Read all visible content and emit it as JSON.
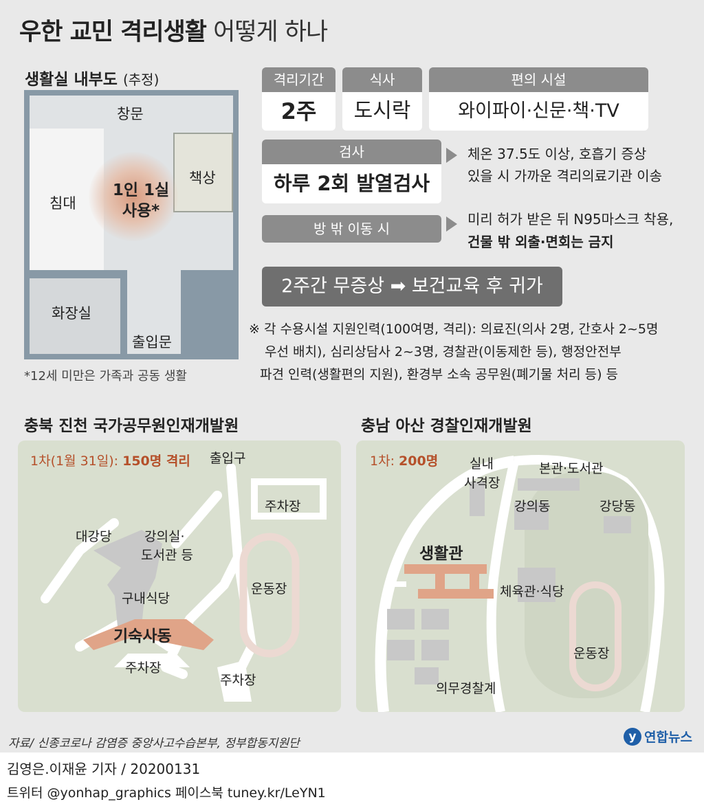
{
  "title": {
    "bold": "우한 교민 격리생활",
    "light": "어떻게 하나"
  },
  "room": {
    "heading": "생활실 내부도",
    "heading_note": "(추정)",
    "window": "창문",
    "desk": "책상",
    "bed": "침대",
    "center_line1": "1인 1실",
    "center_line2": "사용*",
    "bathroom": "화장실",
    "door": "출입문",
    "footnote": "*12세 미만은 가족과 공동 생활"
  },
  "info": {
    "period_label": "격리기간",
    "period_value": "2주",
    "meal_label": "식사",
    "meal_value": "도시락",
    "amenity_label": "편의 시설",
    "amenity_value": "와이파이·신문·책·TV",
    "test_label": "검사",
    "test_value": "하루 2회 발열검사",
    "test_note1": "체온 37.5도 이상, 호흡기 증상",
    "test_note2": "있을 시 가까운 격리의료기관 이송",
    "move_label": "방 밖 이동 시",
    "move_note1": "미리 허가 받은 뒤 N95마스크 착용,",
    "move_note2": "건물 밖 외출·면회는 금지",
    "result": "2주간 무증상 ➡ 보건교육 후 귀가",
    "staff_line1": "※ 각 수용시설 지원인력(100여명, 격리):  의료진(의사 2명, 간호사 2~5명",
    "staff_line2": "우선 배치), 심리상담사 2~3명, 경찰관(이동제한 등), 행정안전부",
    "staff_line3": "파견 인력(생활편의 지원), 환경부 소속 공무원(폐기물 처리 등) 등"
  },
  "jincheon": {
    "heading": "충북 진천 국가공무원인재개발원",
    "phase": "1차(1월 31일):",
    "count": "150명 격리",
    "entrance": "출입구",
    "parking_top": "주차장",
    "auditorium": "대강당",
    "lecture1": "강의실·",
    "lecture2": "도서관 등",
    "track": "운동장",
    "cafeteria": "구내식당",
    "dorm": "기숙사동",
    "parking_bottom": "주차장",
    "parking_right": "주차장"
  },
  "asan": {
    "heading": "충남 아산 경찰인재개발원",
    "phase": "1차:",
    "count": "200명",
    "range1": "실내",
    "range2": "사격장",
    "main": "본관·도서관",
    "lecture": "강의동",
    "hall": "강당동",
    "living": "생활관",
    "gym": "체육관·식당",
    "track": "운동장",
    "conscript": "의무경찰계"
  },
  "footer": {
    "source": "자료/ 신종코로나 감염증 중앙사고수습본부, 정부합동지원단",
    "logo": "연합뉴스",
    "byline": "김영은.이재윤 기자 / 20200131",
    "social": "트위터 @yonhap_graphics  페이스북 tuney.kr/LeYN1"
  },
  "colors": {
    "background": "#e9e9e9",
    "label_gray": "#8c8c8c",
    "dark_bar": "#6f6f6f",
    "map_green": "#d9dfcf",
    "building": "#c8c8c8",
    "highlight": "#e0a488",
    "accent_text": "#b5502a"
  }
}
